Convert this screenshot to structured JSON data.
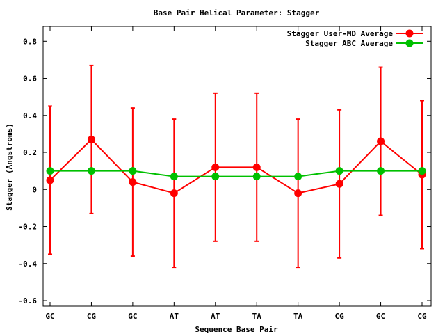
{
  "chart_data": {
    "type": "line",
    "title": "Base Pair Helical Parameter: Stagger",
    "xlabel": "Sequence Base Pair",
    "ylabel": "Stagger (Angstroms)",
    "categories": [
      "GC",
      "CG",
      "GC",
      "AT",
      "AT",
      "TA",
      "TA",
      "CG",
      "GC",
      "CG"
    ],
    "ylim": [
      -0.63,
      0.88
    ],
    "yticks": [
      -0.6,
      -0.4,
      -0.2,
      0,
      0.2,
      0.4,
      0.6,
      0.8
    ],
    "ytick_labels": [
      "-0.6",
      "-0.4",
      "-0.2",
      "0",
      "0.2",
      "0.4",
      "0.6",
      "0.8"
    ],
    "grid": false,
    "legend_position": "top-right",
    "series": [
      {
        "name": "Stagger User-MD Average",
        "color": "#ff0000",
        "values": [
          0.05,
          0.27,
          0.04,
          -0.02,
          0.12,
          0.12,
          -0.02,
          0.03,
          0.26,
          0.08
        ],
        "error_low": [
          -0.35,
          -0.13,
          -0.36,
          -0.42,
          -0.28,
          -0.28,
          -0.42,
          -0.37,
          -0.14,
          -0.32
        ],
        "error_high": [
          0.45,
          0.67,
          0.44,
          0.38,
          0.52,
          0.52,
          0.38,
          0.43,
          0.66,
          0.48
        ]
      },
      {
        "name": "Stagger ABC Average",
        "color": "#00c000",
        "values": [
          0.1,
          0.1,
          0.1,
          0.07,
          0.07,
          0.07,
          0.07,
          0.1,
          0.1,
          0.1
        ]
      }
    ]
  }
}
